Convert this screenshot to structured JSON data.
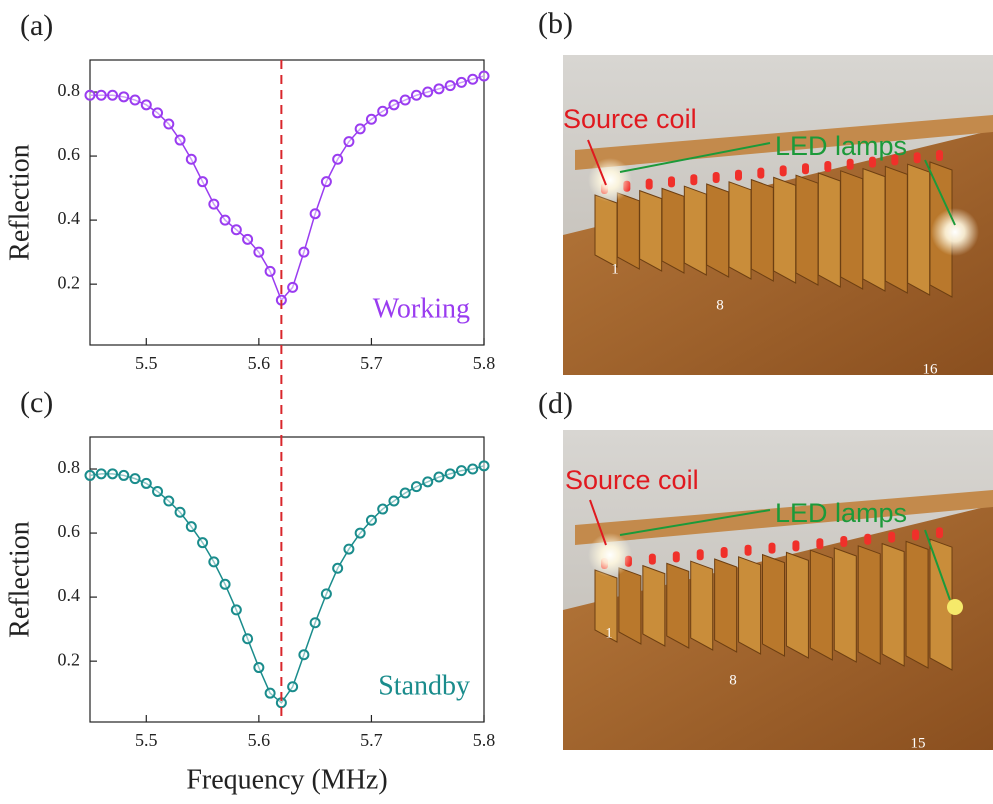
{
  "chart_data": [
    {
      "type": "line",
      "panel_label": "(a)",
      "y_label": "Reflection",
      "annotation": "Working",
      "marker": "circle",
      "color": "#9a3cf0",
      "vline": 5.62,
      "vline_color": "#d9262b",
      "xlim": [
        5.45,
        5.8
      ],
      "ylim": [
        0.01,
        0.9
      ],
      "xticks": [
        5.5,
        5.6,
        5.7,
        5.8
      ],
      "yticks": [
        0.2,
        0.4,
        0.6,
        0.8
      ],
      "x": [
        5.45,
        5.46,
        5.47,
        5.48,
        5.49,
        5.5,
        5.51,
        5.52,
        5.53,
        5.54,
        5.55,
        5.56,
        5.57,
        5.58,
        5.59,
        5.6,
        5.61,
        5.62,
        5.63,
        5.64,
        5.65,
        5.66,
        5.67,
        5.68,
        5.69,
        5.7,
        5.71,
        5.72,
        5.73,
        5.74,
        5.75,
        5.76,
        5.77,
        5.78,
        5.79,
        5.8
      ],
      "values": [
        0.79,
        0.79,
        0.79,
        0.785,
        0.775,
        0.76,
        0.735,
        0.7,
        0.65,
        0.59,
        0.52,
        0.45,
        0.4,
        0.37,
        0.34,
        0.3,
        0.24,
        0.15,
        0.19,
        0.3,
        0.42,
        0.52,
        0.59,
        0.645,
        0.685,
        0.715,
        0.74,
        0.76,
        0.775,
        0.79,
        0.8,
        0.81,
        0.82,
        0.83,
        0.84,
        0.85
      ]
    },
    {
      "type": "line",
      "panel_label": "(c)",
      "y_label": "Reflection",
      "x_label": "Frequency (MHz)",
      "annotation": "Standby",
      "marker": "circle",
      "color": "#1a8c8c",
      "vline": 5.62,
      "vline_color": "#d9262b",
      "xlim": [
        5.45,
        5.8
      ],
      "ylim": [
        0.01,
        0.9
      ],
      "xticks": [
        5.5,
        5.6,
        5.7,
        5.8
      ],
      "yticks": [
        0.2,
        0.4,
        0.6,
        0.8
      ],
      "x": [
        5.45,
        5.46,
        5.47,
        5.48,
        5.49,
        5.5,
        5.51,
        5.52,
        5.53,
        5.54,
        5.55,
        5.56,
        5.57,
        5.58,
        5.59,
        5.6,
        5.61,
        5.62,
        5.63,
        5.64,
        5.65,
        5.66,
        5.67,
        5.68,
        5.69,
        5.7,
        5.71,
        5.72,
        5.73,
        5.74,
        5.75,
        5.76,
        5.77,
        5.78,
        5.79,
        5.8
      ],
      "values": [
        0.78,
        0.785,
        0.785,
        0.78,
        0.77,
        0.755,
        0.73,
        0.7,
        0.665,
        0.62,
        0.57,
        0.51,
        0.44,
        0.36,
        0.27,
        0.18,
        0.1,
        0.07,
        0.12,
        0.22,
        0.32,
        0.41,
        0.49,
        0.55,
        0.6,
        0.64,
        0.675,
        0.7,
        0.725,
        0.745,
        0.76,
        0.775,
        0.785,
        0.795,
        0.8,
        0.81
      ]
    }
  ],
  "photos": [
    {
      "panel_label": "(b)",
      "source_label": "Source coil",
      "lamps_label": "LED lamps",
      "numbers": [
        "1",
        "8",
        "16"
      ]
    },
    {
      "panel_label": "(d)",
      "source_label": "Source coil",
      "lamps_label": "LED lamps",
      "numbers": [
        "1",
        "8",
        "15"
      ]
    }
  ]
}
